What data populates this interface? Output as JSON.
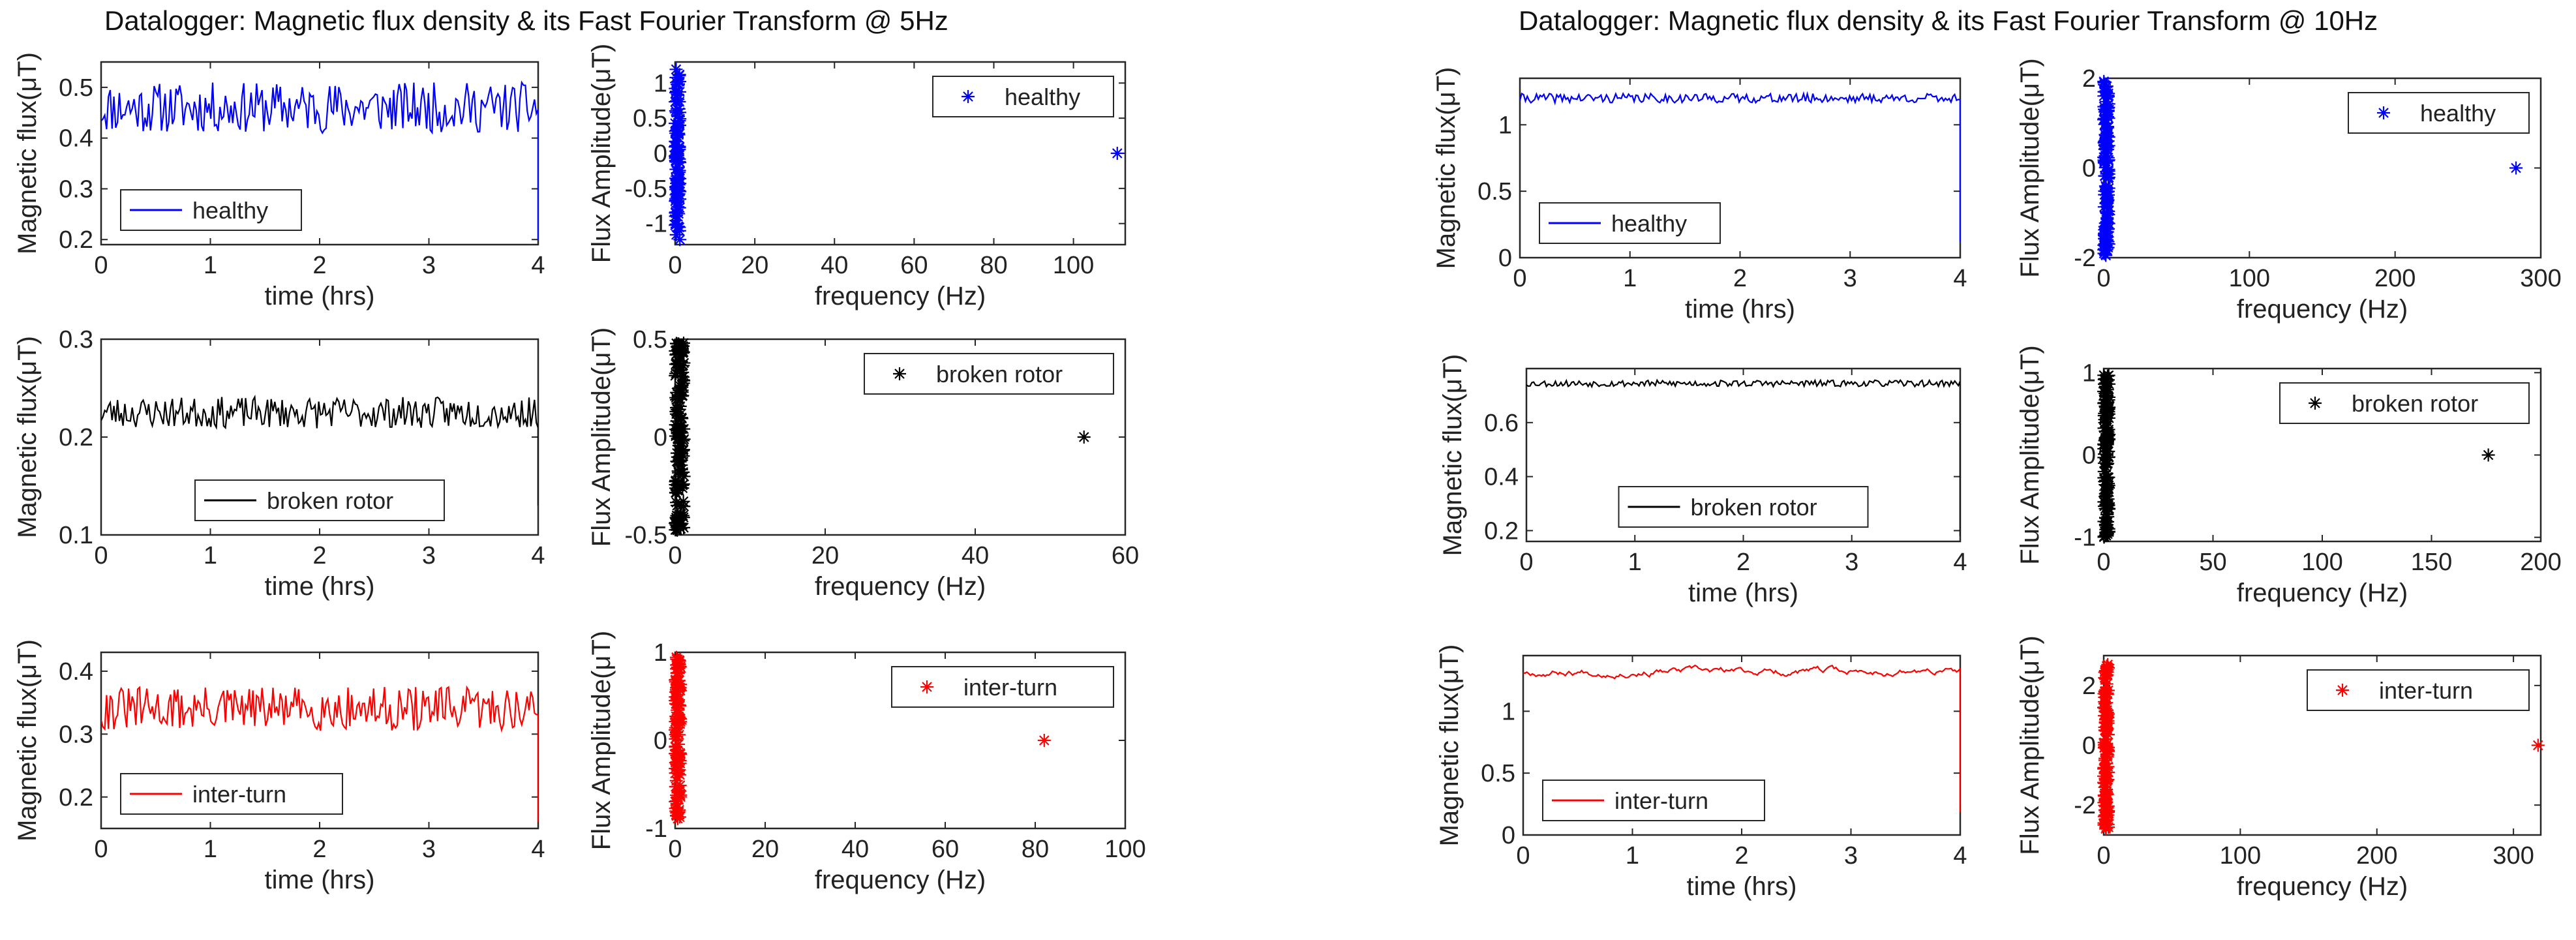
{
  "titles": {
    "left": "Datalogger: Magnetic flux density & its Fast Fourier Transform @ 5Hz",
    "right": "Datalogger: Magnetic flux density & its Fast Fourier Transform @ 10Hz"
  },
  "colors": {
    "healthy": "#0000ff",
    "broken": "#000000",
    "interturn": "#ff0000"
  },
  "chart_data": [
    {
      "id": "left-time-healthy",
      "type": "line",
      "color": "#0000ff",
      "xlabel": "time (hrs)",
      "ylabel": "Magnetic flux(μT)",
      "xlim": [
        0,
        4
      ],
      "ylim": [
        0.19,
        0.55
      ],
      "xticks": [
        0,
        1,
        2,
        3,
        4
      ],
      "xticklabels": [
        "0",
        "1",
        "2",
        "3",
        "4"
      ],
      "yticks": [
        0.2,
        0.3,
        0.4,
        0.5
      ],
      "yticklabels": [
        "0.2",
        "0.3",
        "0.4",
        "0.5"
      ],
      "legend": "healthy",
      "legend_pos": "bottom-left",
      "series": {
        "generator": "noise",
        "mean": 0.46,
        "amp": 0.05,
        "n": 240,
        "seed": 11,
        "drop_end": 0.2
      }
    },
    {
      "id": "left-fft-healthy",
      "type": "scatter",
      "color": "#0000ff",
      "xlabel": "frequency (Hz)",
      "ylabel": "Flux Amplitude(μT)",
      "xlim": [
        0,
        113
      ],
      "ylim": [
        -1.3,
        1.3
      ],
      "xticks": [
        0,
        20,
        40,
        60,
        80,
        100
      ],
      "xticklabels": [
        "0",
        "20",
        "40",
        "60",
        "80",
        "100"
      ],
      "yticks": [
        -1,
        -0.5,
        0,
        0.5,
        1
      ],
      "yticklabels": [
        "-1",
        "-0.5",
        "0",
        "0.5",
        "1"
      ],
      "legend": "healthy",
      "legend_pos": "top-right",
      "cluster": {
        "x_max": 1.2,
        "y_amp": 1.25,
        "n": 120,
        "seed": 5
      },
      "outlier": [
        111,
        0
      ]
    },
    {
      "id": "left-time-broken",
      "type": "line",
      "color": "#000000",
      "xlabel": "time (hrs)",
      "ylabel": "Magnetic flux(μT)",
      "xlim": [
        0,
        4
      ],
      "ylim": [
        0.1,
        0.3
      ],
      "xticks": [
        0,
        1,
        2,
        3,
        4
      ],
      "xticklabels": [
        "0",
        "1",
        "2",
        "3",
        "4"
      ],
      "yticks": [
        0.1,
        0.2,
        0.3
      ],
      "yticklabels": [
        "0.1",
        "0.2",
        "0.3"
      ],
      "legend": "broken rotor",
      "legend_pos": "bottom-center",
      "series": {
        "generator": "noise",
        "mean": 0.225,
        "amp": 0.016,
        "n": 240,
        "seed": 23,
        "drop_end": 0.13
      }
    },
    {
      "id": "left-fft-broken",
      "type": "scatter",
      "color": "#000000",
      "xlabel": "frequency (Hz)",
      "ylabel": "Flux Amplitude(μT)",
      "xlim": [
        0,
        60
      ],
      "ylim": [
        -0.5,
        0.5
      ],
      "xticks": [
        0,
        20,
        40,
        60
      ],
      "xticklabels": [
        "0",
        "20",
        "40",
        "60"
      ],
      "yticks": [
        -0.5,
        0,
        0.5
      ],
      "yticklabels": [
        "-0.5",
        "0",
        "0.5"
      ],
      "legend": "broken rotor",
      "legend_pos": "top-right",
      "cluster": {
        "x_max": 1.2,
        "y_amp": 0.48,
        "n": 140,
        "seed": 8
      },
      "outlier": [
        54.5,
        0
      ]
    },
    {
      "id": "left-time-interturn",
      "type": "line",
      "color": "#ff0000",
      "xlabel": "time (hrs)",
      "ylabel": "Magnetic flux(μT)",
      "xlim": [
        0,
        4
      ],
      "ylim": [
        0.15,
        0.43
      ],
      "xticks": [
        0,
        1,
        2,
        3,
        4
      ],
      "xticklabels": [
        "0",
        "1",
        "2",
        "3",
        "4"
      ],
      "yticks": [
        0.2,
        0.3,
        0.4
      ],
      "yticklabels": [
        "0.2",
        "0.3",
        "0.4"
      ],
      "legend": "inter-turn",
      "legend_pos": "bottom-left",
      "series": {
        "generator": "noise",
        "mean": 0.34,
        "amp": 0.035,
        "n": 240,
        "seed": 31,
        "drop_end": 0.16
      }
    },
    {
      "id": "left-fft-interturn",
      "type": "scatter",
      "color": "#ff0000",
      "xlabel": "frequency (Hz)",
      "ylabel": "Flux Amplitude(μT)",
      "xlim": [
        0,
        100
      ],
      "ylim": [
        -1,
        1
      ],
      "xticks": [
        0,
        20,
        40,
        60,
        80,
        100
      ],
      "xticklabels": [
        "0",
        "20",
        "40",
        "60",
        "80",
        "100"
      ],
      "yticks": [
        -1,
        0,
        1
      ],
      "yticklabels": [
        "-1",
        "0",
        "1"
      ],
      "legend": "inter-turn",
      "legend_pos": "top-right",
      "cluster": {
        "x_max": 1.2,
        "y_amp": 0.95,
        "n": 130,
        "seed": 4
      },
      "outlier": [
        82,
        0
      ]
    },
    {
      "id": "right-time-healthy",
      "type": "line",
      "color": "#0000ff",
      "xlabel": "time (hrs)",
      "ylabel": "Magnetic flux(μT)",
      "xlim": [
        0,
        4
      ],
      "ylim": [
        0,
        1.35
      ],
      "xticks": [
        0,
        1,
        2,
        3,
        4
      ],
      "xticklabels": [
        "0",
        "1",
        "2",
        "3",
        "4"
      ],
      "yticks": [
        0,
        0.5,
        1
      ],
      "yticklabels": [
        "0",
        "0.5",
        "1"
      ],
      "legend": "healthy",
      "legend_pos": "bottom-left",
      "series": {
        "generator": "noise",
        "mean": 1.2,
        "amp": 0.035,
        "n": 240,
        "seed": 41,
        "drop_end": 0.12
      }
    },
    {
      "id": "right-fft-healthy",
      "type": "scatter",
      "color": "#0000ff",
      "xlabel": "frequency (Hz)",
      "ylabel": "Flux Amplitude(μT)",
      "xlim": [
        0,
        300
      ],
      "ylim": [
        -2,
        2
      ],
      "xticks": [
        0,
        100,
        200,
        300
      ],
      "xticklabels": [
        "0",
        "100",
        "200",
        "300"
      ],
      "yticks": [
        -2,
        0,
        2
      ],
      "yticklabels": [
        "-2",
        "0",
        "2"
      ],
      "legend": "healthy",
      "legend_pos": "top-right",
      "cluster": {
        "x_max": 3.5,
        "y_amp": 1.95,
        "n": 150,
        "seed": 17
      },
      "outlier": [
        283,
        0
      ]
    },
    {
      "id": "right-time-broken",
      "type": "line",
      "color": "#000000",
      "xlabel": "time (hrs)",
      "ylabel": "Magnetic flux(μT)",
      "xlim": [
        0,
        4
      ],
      "ylim": [
        0.16,
        0.8
      ],
      "xticks": [
        0,
        1,
        2,
        3,
        4
      ],
      "xticklabels": [
        "0",
        "1",
        "2",
        "3",
        "4"
      ],
      "yticks": [
        0.2,
        0.4,
        0.6
      ],
      "yticklabels": [
        "0.2",
        "0.4",
        "0.6"
      ],
      "legend": "broken rotor",
      "legend_pos": "bottom-center",
      "series": {
        "generator": "noise",
        "mean": 0.745,
        "amp": 0.012,
        "n": 240,
        "seed": 53,
        "drop_end": 0.18
      }
    },
    {
      "id": "right-fft-broken",
      "type": "scatter",
      "color": "#000000",
      "xlabel": "frequency (Hz)",
      "ylabel": "Flux Amplitude(μT)",
      "xlim": [
        0,
        200
      ],
      "ylim": [
        -1.05,
        1.05
      ],
      "xticks": [
        0,
        50,
        100,
        150,
        200
      ],
      "xticklabels": [
        "0",
        "50",
        "100",
        "150",
        "200"
      ],
      "yticks": [
        -1,
        0,
        1
      ],
      "yticklabels": [
        "-1",
        "0",
        "1"
      ],
      "legend": "broken rotor",
      "legend_pos": "top-right",
      "cluster": {
        "x_max": 2.5,
        "y_amp": 1.0,
        "n": 150,
        "seed": 29
      },
      "outlier": [
        176,
        0
      ]
    },
    {
      "id": "right-time-interturn",
      "type": "line",
      "color": "#ff0000",
      "xlabel": "time (hrs)",
      "ylabel": "Magnetic flux(μT)",
      "xlim": [
        0,
        4
      ],
      "ylim": [
        0,
        1.45
      ],
      "xticks": [
        0,
        1,
        2,
        3,
        4
      ],
      "xticklabels": [
        "0",
        "1",
        "2",
        "3",
        "4"
      ],
      "yticks": [
        0,
        0.5,
        1
      ],
      "yticklabels": [
        "0",
        "0.5",
        "1"
      ],
      "legend": "inter-turn",
      "legend_pos": "bottom-left",
      "series": {
        "generator": "smooth",
        "mean": 1.32,
        "amp": 0.045,
        "n": 240,
        "seed": 67,
        "drop_end": 0.18
      }
    },
    {
      "id": "right-fft-interturn",
      "type": "scatter",
      "color": "#ff0000",
      "xlabel": "frequency (Hz)",
      "ylabel": "Flux Amplitude(μT)",
      "xlim": [
        0,
        320
      ],
      "ylim": [
        -3,
        3
      ],
      "xticks": [
        0,
        100,
        200,
        300
      ],
      "xticklabels": [
        "0",
        "100",
        "200",
        "300"
      ],
      "yticks": [
        -2,
        0,
        2
      ],
      "yticklabels": [
        "-2",
        "0",
        "2"
      ],
      "legend": "inter-turn",
      "legend_pos": "top-right",
      "cluster": {
        "x_max": 3.5,
        "y_amp": 2.8,
        "n": 150,
        "seed": 71
      },
      "outlier": [
        318,
        0
      ]
    }
  ]
}
